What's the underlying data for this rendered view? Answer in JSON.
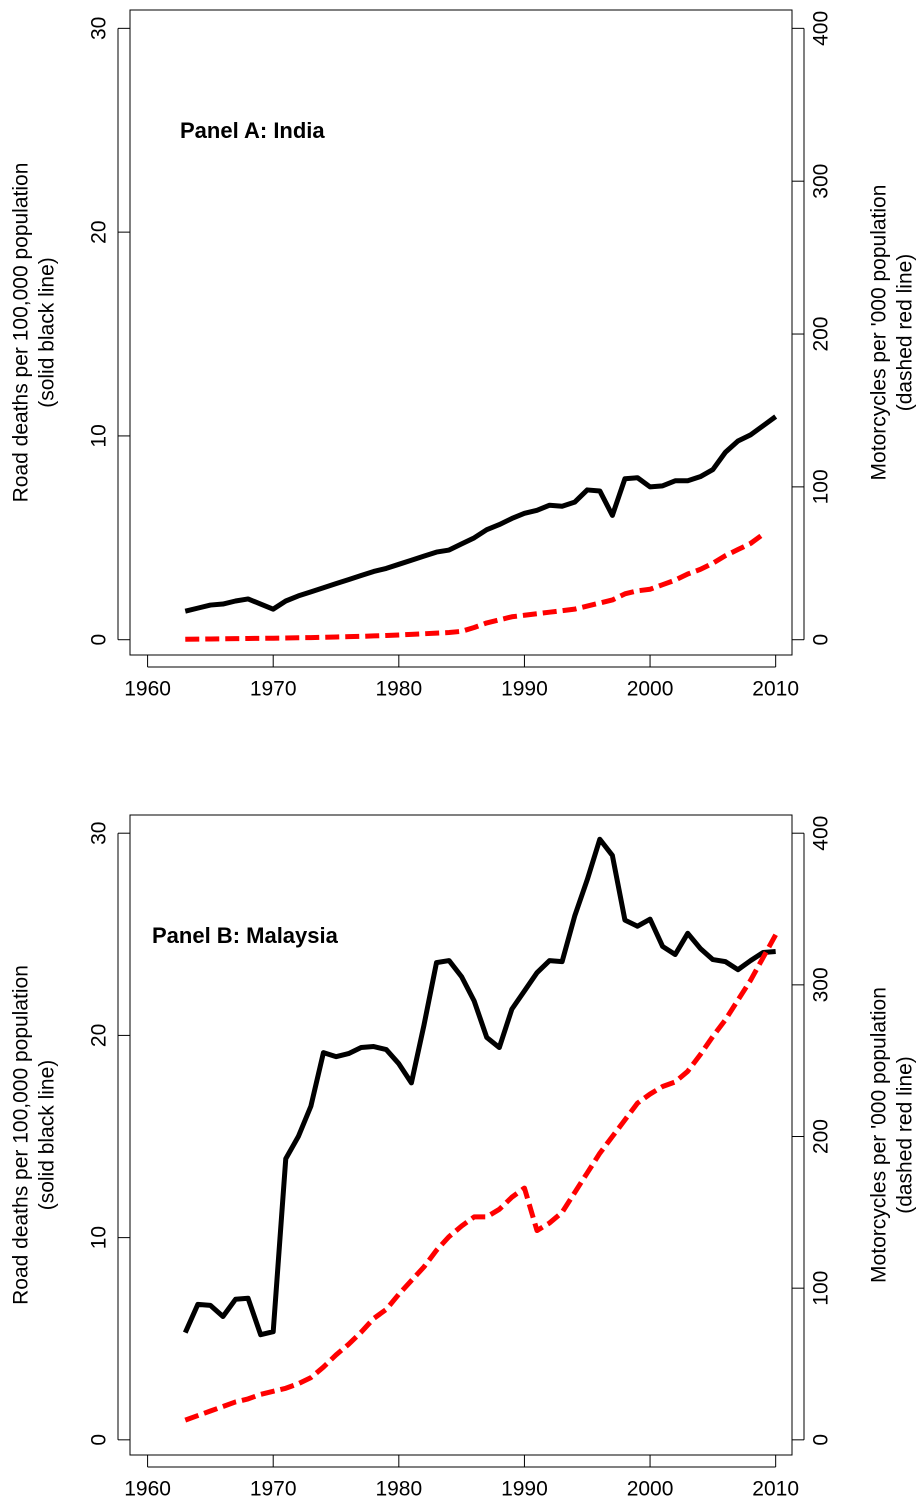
{
  "chart_data": [
    {
      "type": "line",
      "title": "Panel A: India",
      "ylabel": [
        "Road deaths per 100,000 population",
        "(solid black line)"
      ],
      "y2label": [
        "Motorcycles per '000 population",
        "(dashed red line)"
      ],
      "x": [
        1963,
        1964,
        1965,
        1966,
        1967,
        1968,
        1969,
        1970,
        1971,
        1972,
        1973,
        1974,
        1975,
        1976,
        1977,
        1978,
        1979,
        1980,
        1981,
        1982,
        1983,
        1984,
        1985,
        1986,
        1987,
        1988,
        1989,
        1990,
        1991,
        1992,
        1993,
        1994,
        1995,
        1996,
        1997,
        1998,
        1999,
        2000,
        2001,
        2002,
        2003,
        2004,
        2005,
        2006,
        2007,
        2008,
        2009,
        2010
      ],
      "series": [
        {
          "color": "#000000",
          "dashed": false,
          "values": [
            1.4,
            1.55,
            1.7,
            1.75,
            1.9,
            2.0,
            1.75,
            1.5,
            1.9,
            2.15,
            2.35,
            2.55,
            2.75,
            2.95,
            3.15,
            3.35,
            3.5,
            3.7,
            3.9,
            4.1,
            4.3,
            4.4,
            4.7,
            5.0,
            5.4,
            5.65,
            5.95,
            6.2,
            6.35,
            6.6,
            6.55,
            6.75,
            7.35,
            7.3,
            6.1,
            7.9,
            7.95,
            7.5,
            7.55,
            7.8,
            7.8,
            8.0,
            8.35,
            9.2,
            9.75,
            10.05,
            10.5,
            10.95
          ]
        },
        {
          "color": "#ff0000",
          "dashed": true,
          "axis": "y2",
          "values": [
            0.3,
            0.4,
            0.5,
            0.6,
            0.7,
            0.8,
            0.9,
            1.0,
            1.1,
            1.3,
            1.4,
            1.6,
            1.8,
            2.0,
            2.2,
            2.5,
            2.8,
            3.1,
            3.5,
            3.9,
            4.3,
            4.7,
            5.5,
            8,
            11,
            13,
            15,
            16,
            17,
            18,
            19,
            20,
            22,
            24,
            26,
            30,
            32,
            33,
            36,
            39,
            43,
            46,
            50,
            55,
            59,
            63,
            69,
            null
          ]
        }
      ],
      "xlim": [
        1958.6,
        2011.3
      ],
      "xticks": [
        1960,
        1970,
        1980,
        1990,
        2000,
        2010
      ],
      "ylim": [
        -0.75,
        30.9
      ],
      "yticks": [
        0,
        10,
        20,
        30
      ],
      "y2lim": [
        -10,
        412
      ],
      "y2ticks": [
        0,
        100,
        200,
        300,
        400
      ]
    },
    {
      "type": "line",
      "title": "Panel B: Malaysia",
      "ylabel": [
        "Road deaths per 100,000 population",
        "(solid black line)"
      ],
      "y2label": [
        "Motorcycles per '000 population",
        "(dashed red line)"
      ],
      "x": [
        1963,
        1964,
        1965,
        1966,
        1967,
        1968,
        1969,
        1970,
        1971,
        1972,
        1973,
        1974,
        1975,
        1976,
        1977,
        1978,
        1979,
        1980,
        1981,
        1982,
        1983,
        1984,
        1985,
        1986,
        1987,
        1988,
        1989,
        1990,
        1991,
        1992,
        1993,
        1994,
        1995,
        1996,
        1997,
        1998,
        1999,
        2000,
        2001,
        2002,
        2003,
        2004,
        2005,
        2006,
        2007,
        2008,
        2009,
        2010
      ],
      "series": [
        {
          "color": "#000000",
          "dashed": false,
          "values": [
            5.3,
            6.7,
            6.65,
            6.1,
            6.95,
            7.0,
            5.2,
            5.35,
            13.9,
            15.0,
            16.5,
            19.15,
            18.95,
            19.1,
            19.4,
            19.45,
            19.3,
            18.6,
            17.65,
            20.5,
            23.6,
            23.7,
            22.9,
            21.7,
            19.9,
            19.4,
            21.3,
            22.2,
            23.1,
            23.7,
            23.65,
            25.9,
            27.7,
            29.7,
            28.9,
            25.7,
            25.4,
            25.75,
            24.4,
            24.0,
            25.05,
            24.3,
            23.75,
            23.65,
            23.25,
            23.7,
            24.1,
            24.15
          ]
        },
        {
          "color": "#ff0000",
          "dashed": true,
          "axis": "y2",
          "values": [
            13,
            16,
            19,
            22,
            25,
            27,
            30,
            32,
            34,
            37,
            41,
            48,
            56,
            63,
            71,
            80,
            86,
            96,
            105,
            114,
            125,
            134,
            141,
            147,
            147,
            152,
            160,
            166,
            138,
            143,
            150,
            163,
            176,
            189,
            200,
            211,
            222,
            228,
            233,
            236,
            243,
            254,
            266,
            277,
            290,
            303,
            318,
            333
          ]
        }
      ],
      "xlim": [
        1958.6,
        2011.3
      ],
      "xticks": [
        1960,
        1970,
        1980,
        1990,
        2000,
        2010
      ],
      "ylim": [
        -0.75,
        30.9
      ],
      "yticks": [
        0,
        10,
        20,
        30
      ],
      "y2lim": [
        -10,
        412
      ],
      "y2ticks": [
        0,
        100,
        200,
        300,
        400
      ]
    }
  ]
}
